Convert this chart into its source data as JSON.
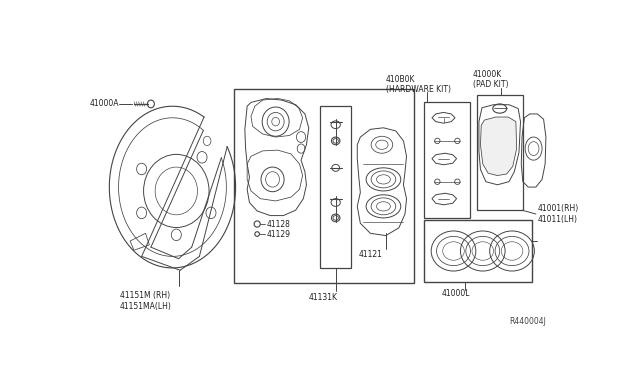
{
  "bg_color": "#ffffff",
  "line_color": "#444444",
  "text_color": "#222222",
  "ref_code": "R440004J",
  "label_41000A": "41000A",
  "label_41151": "41151M (RH)\n41151MA(LH)",
  "label_41128": "41128",
  "label_41129": "41129",
  "label_41131K": "41131K",
  "label_41121": "41121",
  "label_41000L": "41000L",
  "label_410B0K": "410B0K\n(HARDWARE KIT)",
  "label_41000K": "41000K\n(PAD KIT)",
  "label_41001": "41001(RH)\n41011(LH)"
}
